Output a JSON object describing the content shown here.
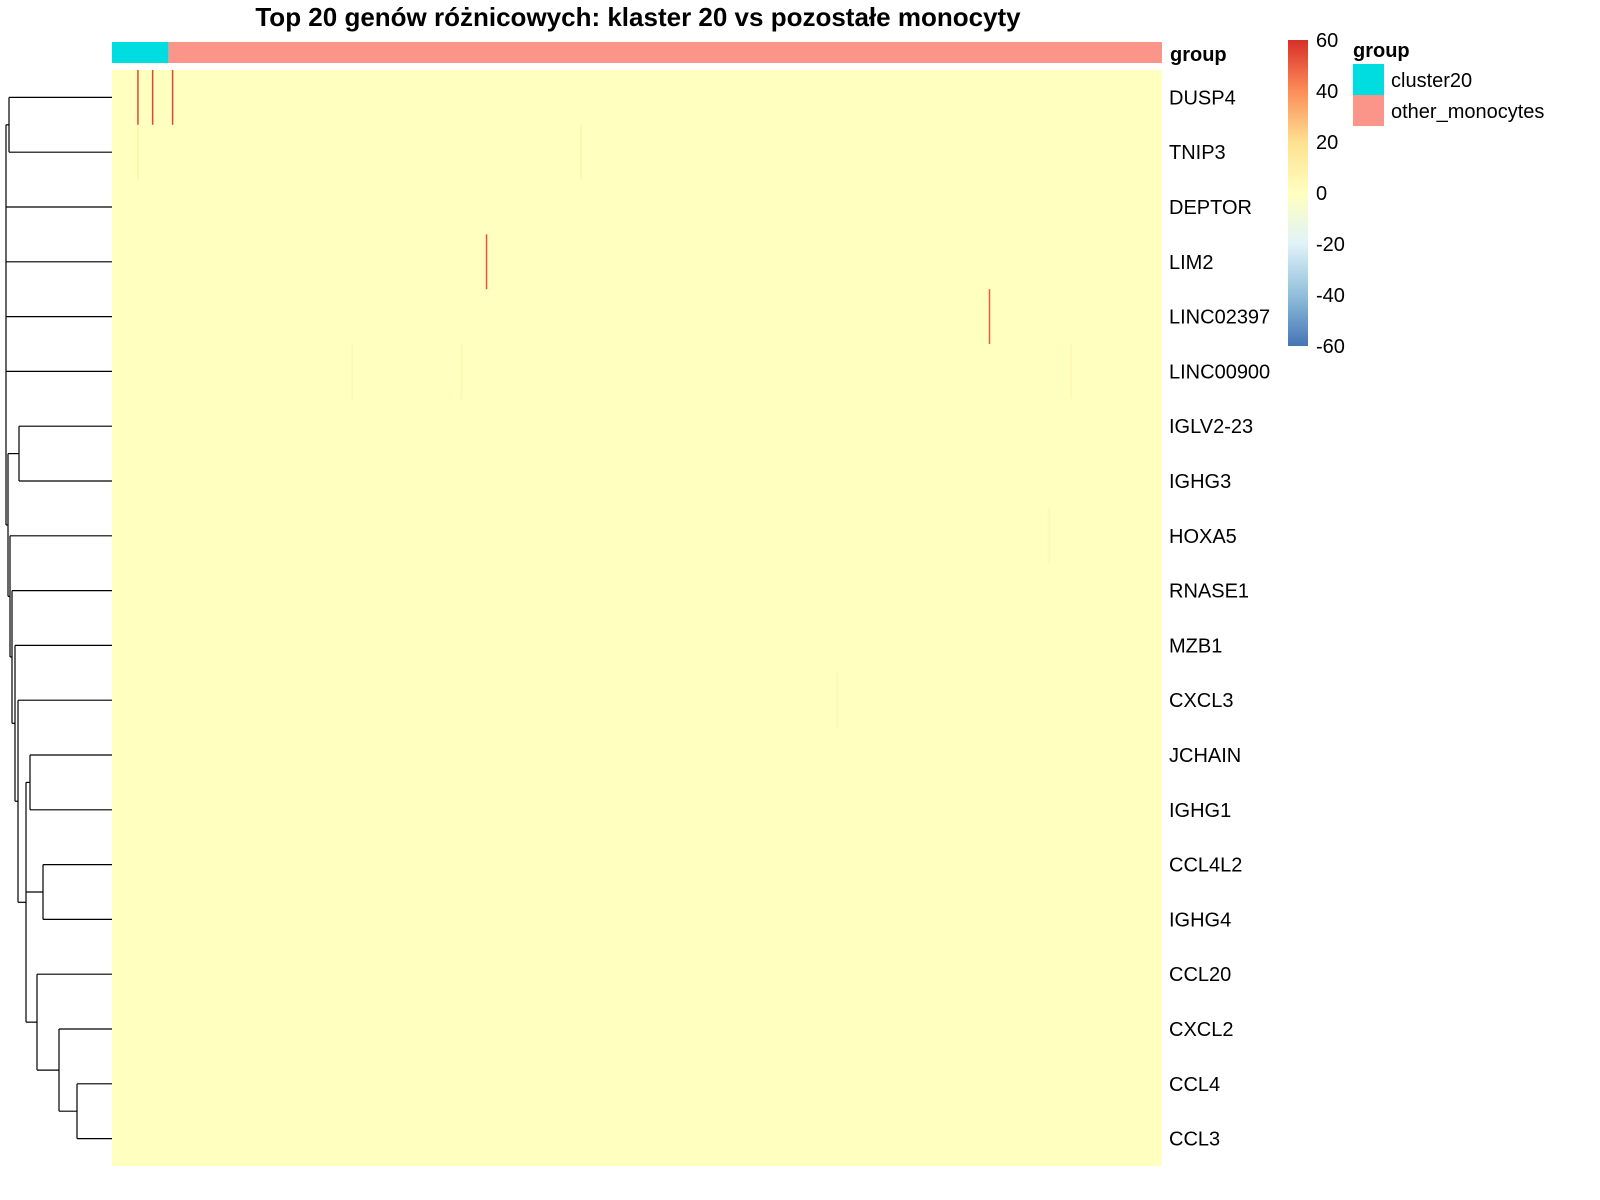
{
  "chart_data": {
    "type": "heatmap",
    "title": "Top 20 genów różnicowych: klaster 20 vs pozostałe monocyty",
    "rows": [
      "DUSP4",
      "TNIP3",
      "DEPTOR",
      "LIM2",
      "LINC02397",
      "LINC00900",
      "IGLV2-23",
      "IGHG3",
      "HOXA5",
      "RNASE1",
      "MZB1",
      "CXCL3",
      "JCHAIN",
      "IGHG1",
      "CCL4L2",
      "IGHG4",
      "CCL20",
      "CXCL2",
      "CCL4",
      "CCL3"
    ],
    "column_annotation": {
      "name": "group",
      "groups": [
        {
          "label": "cluster20",
          "color": "#00DDE0",
          "fraction": 0.054
        },
        {
          "label": "other_monocytes",
          "color": "#FB9489",
          "fraction": 0.946
        }
      ]
    },
    "color_scale": {
      "min": -60,
      "max": 60,
      "ticks": [
        "60",
        "40",
        "20",
        "0",
        "-20",
        "-40",
        "-60"
      ],
      "colors": [
        "#4575B4",
        "#91BFDB",
        "#E0F3F8",
        "#FFFFBF",
        "#FEE090",
        "#FC8D59",
        "#D73027"
      ]
    },
    "background_value": 0,
    "row_dendrogram": "hierarchical clustering of rows (left)",
    "highlights": [
      {
        "row": "DUSP4",
        "col_fraction": 0.024,
        "value": 55
      },
      {
        "row": "DUSP4",
        "col_fraction": 0.038,
        "value": 55
      },
      {
        "row": "DUSP4",
        "col_fraction": 0.057,
        "value": 55
      },
      {
        "row": "TNIP3",
        "col_fraction": 0.024,
        "value": 8
      },
      {
        "row": "TNIP3",
        "col_fraction": 0.446,
        "value": 8
      },
      {
        "row": "LIM2",
        "col_fraction": 0.356,
        "value": 52
      },
      {
        "row": "LINC02397",
        "col_fraction": 0.835,
        "value": 50
      },
      {
        "row": "LINC00900",
        "col_fraction": 0.228,
        "value": 6
      },
      {
        "row": "LINC00900",
        "col_fraction": 0.332,
        "value": 6
      },
      {
        "row": "LINC00900",
        "col_fraction": 0.913,
        "value": 6
      },
      {
        "row": "HOXA5",
        "col_fraction": 0.892,
        "value": 6
      },
      {
        "row": "CXCL3",
        "col_fraction": 0.69,
        "value": 6
      }
    ]
  }
}
